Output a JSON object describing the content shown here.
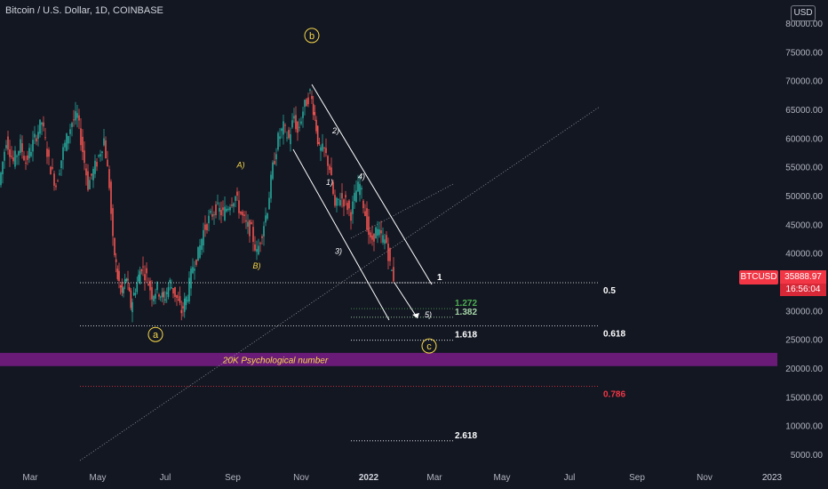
{
  "header": {
    "title": "Bitcoin / U.S. Dollar, 1D, COINBASE",
    "currency_button": "USD"
  },
  "price_tag": {
    "symbol": "BTCUSD",
    "price": "35888.97",
    "countdown": "16:56:04",
    "color": "#f23645"
  },
  "chart_data": {
    "type": "candlestick",
    "y_axis": {
      "ticks": [
        "80000.00",
        "75000.00",
        "70000.00",
        "65000.00",
        "60000.00",
        "55000.00",
        "50000.00",
        "45000.00",
        "40000.00",
        "35000.00",
        "30000.00",
        "25000.00",
        "20000.00",
        "15000.00",
        "10000.00",
        "5000.00"
      ],
      "range": [
        3500,
        81000
      ]
    },
    "x_axis": {
      "ticks": [
        "Mar",
        "May",
        "Jul",
        "Sep",
        "Nov",
        "2022",
        "Mar",
        "May",
        "Jul",
        "Sep",
        "Nov",
        "2023"
      ]
    },
    "price_path": [
      [
        0,
        52000
      ],
      [
        8,
        60000
      ],
      [
        16,
        56000
      ],
      [
        24,
        59000
      ],
      [
        30,
        56000
      ],
      [
        40,
        60000
      ],
      [
        48,
        63000
      ],
      [
        56,
        56000
      ],
      [
        64,
        52000
      ],
      [
        72,
        58000
      ],
      [
        82,
        63000
      ],
      [
        88,
        64000
      ],
      [
        94,
        58000
      ],
      [
        100,
        52000
      ],
      [
        110,
        56000
      ],
      [
        118,
        60000
      ],
      [
        124,
        52000
      ],
      [
        128,
        42000
      ],
      [
        133,
        36000
      ],
      [
        138,
        33000
      ],
      [
        143,
        36000
      ],
      [
        148,
        31000
      ],
      [
        155,
        35000
      ],
      [
        160,
        38000
      ],
      [
        166,
        36000
      ],
      [
        172,
        33000
      ],
      [
        178,
        34000
      ],
      [
        185,
        32000
      ],
      [
        192,
        35000
      ],
      [
        198,
        33000
      ],
      [
        205,
        30000
      ],
      [
        212,
        33000
      ],
      [
        218,
        38000
      ],
      [
        224,
        40000
      ],
      [
        230,
        44000
      ],
      [
        236,
        46000
      ],
      [
        244,
        48000
      ],
      [
        252,
        47000
      ],
      [
        260,
        49000
      ],
      [
        266,
        50000
      ],
      [
        272,
        47000
      ],
      [
        278,
        45000
      ],
      [
        284,
        44000
      ],
      [
        290,
        40000
      ],
      [
        296,
        44000
      ],
      [
        302,
        48000
      ],
      [
        308,
        55000
      ],
      [
        314,
        60000
      ],
      [
        320,
        62000
      ],
      [
        326,
        60000
      ],
      [
        332,
        64000
      ],
      [
        336,
        61000
      ],
      [
        342,
        65000
      ],
      [
        350,
        68000
      ],
      [
        355,
        64000
      ],
      [
        360,
        58000
      ],
      [
        366,
        58000
      ],
      [
        372,
        55000
      ],
      [
        378,
        48000
      ],
      [
        384,
        50000
      ],
      [
        390,
        49000
      ],
      [
        396,
        47000
      ],
      [
        402,
        51000
      ],
      [
        406,
        52000
      ],
      [
        412,
        47000
      ],
      [
        418,
        42000
      ],
      [
        424,
        44000
      ],
      [
        430,
        43000
      ],
      [
        436,
        42000
      ],
      [
        440,
        38000
      ],
      [
        444,
        35889
      ]
    ],
    "wave_labels": [
      {
        "text": "b",
        "x": 351,
        "y": 78000,
        "circled": true
      },
      {
        "text": "a",
        "x": 175,
        "y": 26000,
        "circled": true
      },
      {
        "text": "c",
        "x": 483,
        "y": 24000,
        "circled": true
      },
      {
        "text": "A)",
        "x": 271,
        "y": 55000
      },
      {
        "text": "B)",
        "x": 289,
        "y": 37500
      },
      {
        "text": "1)",
        "x": 371,
        "y": 52000
      },
      {
        "text": "2)",
        "x": 378,
        "y": 61000
      },
      {
        "text": "3)",
        "x": 381,
        "y": 40000
      },
      {
        "text": "4)",
        "x": 407,
        "y": 53000
      },
      {
        "text": "5)",
        "x": 482,
        "y": 29000
      }
    ],
    "fib_levels": [
      {
        "label": "1",
        "price": 35000,
        "x_start": 395,
        "x_end": 490,
        "color": "#ffffff"
      },
      {
        "label": "1.272",
        "price": 30500,
        "x_start": 395,
        "x_end": 510,
        "color": "#4caf50"
      },
      {
        "label": "1.382",
        "price": 29000,
        "x_start": 395,
        "x_end": 510,
        "color": "#a5d6a7"
      },
      {
        "label": "1.618",
        "price": 25000,
        "x_start": 395,
        "x_end": 510,
        "color": "#ffffff"
      },
      {
        "label": "2.618",
        "price": 7500,
        "x_start": 395,
        "x_end": 510,
        "color": "#ffffff"
      }
    ],
    "retracement_levels": [
      {
        "label": "0.5",
        "price": 35000,
        "color": "#ffffff"
      },
      {
        "label": "0.618",
        "price": 27500,
        "color": "#ffffff"
      },
      {
        "label": "0.786",
        "price": 17000,
        "color": "#f23645"
      }
    ],
    "zone": {
      "label": "20K Psychological number",
      "price_low": 20500,
      "price_high": 22800,
      "color": "#6a1b78",
      "text_color": "#f9d94a"
    }
  }
}
